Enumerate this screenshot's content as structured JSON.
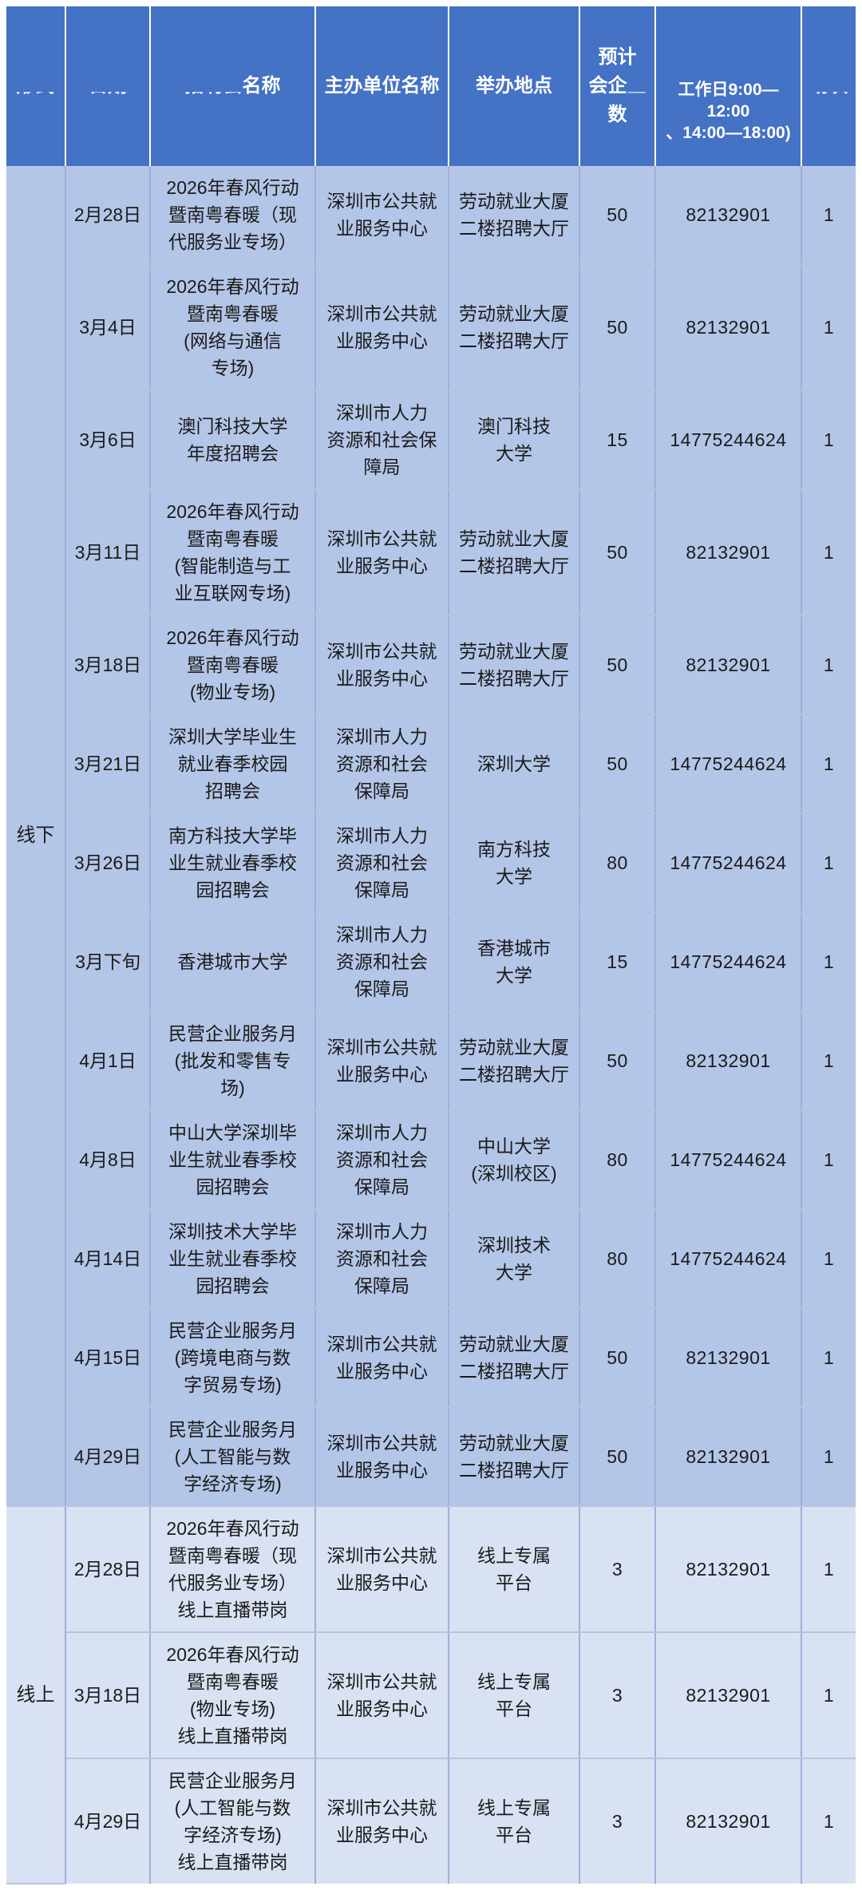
{
  "colors": {
    "header_bg": "#4472C4",
    "header_text": "#FFFFFF",
    "offline_row_bg": "#B4C6E7",
    "online_row_bg": "#D9E2F3",
    "body_text": "#1A1A1A",
    "grid_line": "#9FAFD8"
  },
  "header": {
    "form": "形式",
    "date": "日期",
    "fair_name": {
      "clipped": "招聘会",
      "visible": "名称"
    },
    "organizer": "主办单位名称",
    "venue": "举办地点",
    "expected": {
      "line1": "预计",
      "line2_visible": "会企",
      "line2_clipped": "业",
      "line3": "数",
      "full": "预计会企业数"
    },
    "phone": {
      "line1": "工作日9:00—12:00",
      "line2": "、14:00—18:00)"
    },
    "sessions": "场次"
  },
  "groups": [
    {
      "label": "线下",
      "style": "offline",
      "rows": [
        {
          "date": "2月28日",
          "name": "2026年春风行动\n暨南粤春暖（现\n代服务业专场）",
          "organizer": "深圳市公共就\n业服务中心",
          "venue": "劳动就业大厦\n二楼招聘大厅",
          "expected": "50",
          "phone": "82132901",
          "sessions": "1"
        },
        {
          "date": "3月4日",
          "name": "2026年春风行动\n暨南粤春暖\n(网络与通信\n专场)",
          "organizer": "深圳市公共就\n业服务中心",
          "venue": "劳动就业大厦\n二楼招聘大厅",
          "expected": "50",
          "phone": "82132901",
          "sessions": "1"
        },
        {
          "date": "3月6日",
          "name": "澳门科技大学\n年度招聘会",
          "organizer": "深圳市人力\n资源和社会保\n障局",
          "venue": "澳门科技\n大学",
          "expected": "15",
          "phone": "14775244624",
          "sessions": "1"
        },
        {
          "date": "3月11日",
          "name": "2026年春风行动\n暨南粤春暖\n(智能制造与工\n业互联网专场)",
          "organizer": "深圳市公共就\n业服务中心",
          "venue": "劳动就业大厦\n二楼招聘大厅",
          "expected": "50",
          "phone": "82132901",
          "sessions": "1"
        },
        {
          "date": "3月18日",
          "name": "2026年春风行动\n暨南粤春暖\n(物业专场)",
          "organizer": "深圳市公共就\n业服务中心",
          "venue": "劳动就业大厦\n二楼招聘大厅",
          "expected": "50",
          "phone": "82132901",
          "sessions": "1"
        },
        {
          "date": "3月21日",
          "name": "深圳大学毕业生\n就业春季校园\n招聘会",
          "organizer": "深圳市人力\n资源和社会\n保障局",
          "venue": "深圳大学",
          "expected": "50",
          "phone": "14775244624",
          "sessions": "1"
        },
        {
          "date": "3月26日",
          "name": "南方科技大学毕\n业生就业春季校\n园招聘会",
          "organizer": "深圳市人力\n资源和社会\n保障局",
          "venue": "南方科技\n大学",
          "expected": "80",
          "phone": "14775244624",
          "sessions": "1"
        },
        {
          "date": "3月下旬",
          "name": "香港城市大学",
          "organizer": "深圳市人力\n资源和社会\n保障局",
          "venue": "香港城市\n大学",
          "expected": "15",
          "phone": "14775244624",
          "sessions": "1"
        },
        {
          "date": "4月1日",
          "name": "民营企业服务月\n(批发和零售专\n场)",
          "organizer": "深圳市公共就\n业服务中心",
          "venue": "劳动就业大厦\n二楼招聘大厅",
          "expected": "50",
          "phone": "82132901",
          "sessions": "1"
        },
        {
          "date": "4月8日",
          "name": "中山大学深圳毕\n业生就业春季校\n园招聘会",
          "organizer": "深圳市人力\n资源和社会\n保障局",
          "venue": "中山大学\n(深圳校区)",
          "expected": "80",
          "phone": "14775244624",
          "sessions": "1"
        },
        {
          "date": "4月14日",
          "name": "深圳技术大学毕\n业生就业春季校\n园招聘会",
          "organizer": "深圳市人力\n资源和社会\n保障局",
          "venue": "深圳技术\n大学",
          "expected": "80",
          "phone": "14775244624",
          "sessions": "1"
        },
        {
          "date": "4月15日",
          "name": "民营企业服务月\n(跨境电商与数\n字贸易专场)",
          "organizer": "深圳市公共就\n业服务中心",
          "venue": "劳动就业大厦\n二楼招聘大厅",
          "expected": "50",
          "phone": "82132901",
          "sessions": "1"
        },
        {
          "date": "4月29日",
          "name": "民营企业服务月\n(人工智能与数\n字经济专场)",
          "organizer": "深圳市公共就\n业服务中心",
          "venue": "劳动就业大厦\n二楼招聘大厅",
          "expected": "50",
          "phone": "82132901",
          "sessions": "1"
        }
      ]
    },
    {
      "label": "线上",
      "style": "online",
      "rows": [
        {
          "date": "2月28日",
          "name": "2026年春风行动\n暨南粤春暖（现\n代服务业专场）\n线上直播带岗",
          "organizer": "深圳市公共就\n业服务中心",
          "venue": "线上专属\n平台",
          "expected": "3",
          "phone": "82132901",
          "sessions": "1"
        },
        {
          "date": "3月18日",
          "name": "2026年春风行动\n暨南粤春暖\n(物业专场)\n线上直播带岗",
          "organizer": "深圳市公共就\n业服务中心",
          "venue": "线上专属\n平台",
          "expected": "3",
          "phone": "82132901",
          "sessions": "1"
        },
        {
          "date": "4月29日",
          "name": "民营企业服务月\n(人工智能与数\n字经济专场)\n线上直播带岗",
          "organizer": "深圳市公共就\n业服务中心",
          "venue": "线上专属\n平台",
          "expected": "3",
          "phone": "82132901",
          "sessions": "1"
        }
      ]
    }
  ]
}
